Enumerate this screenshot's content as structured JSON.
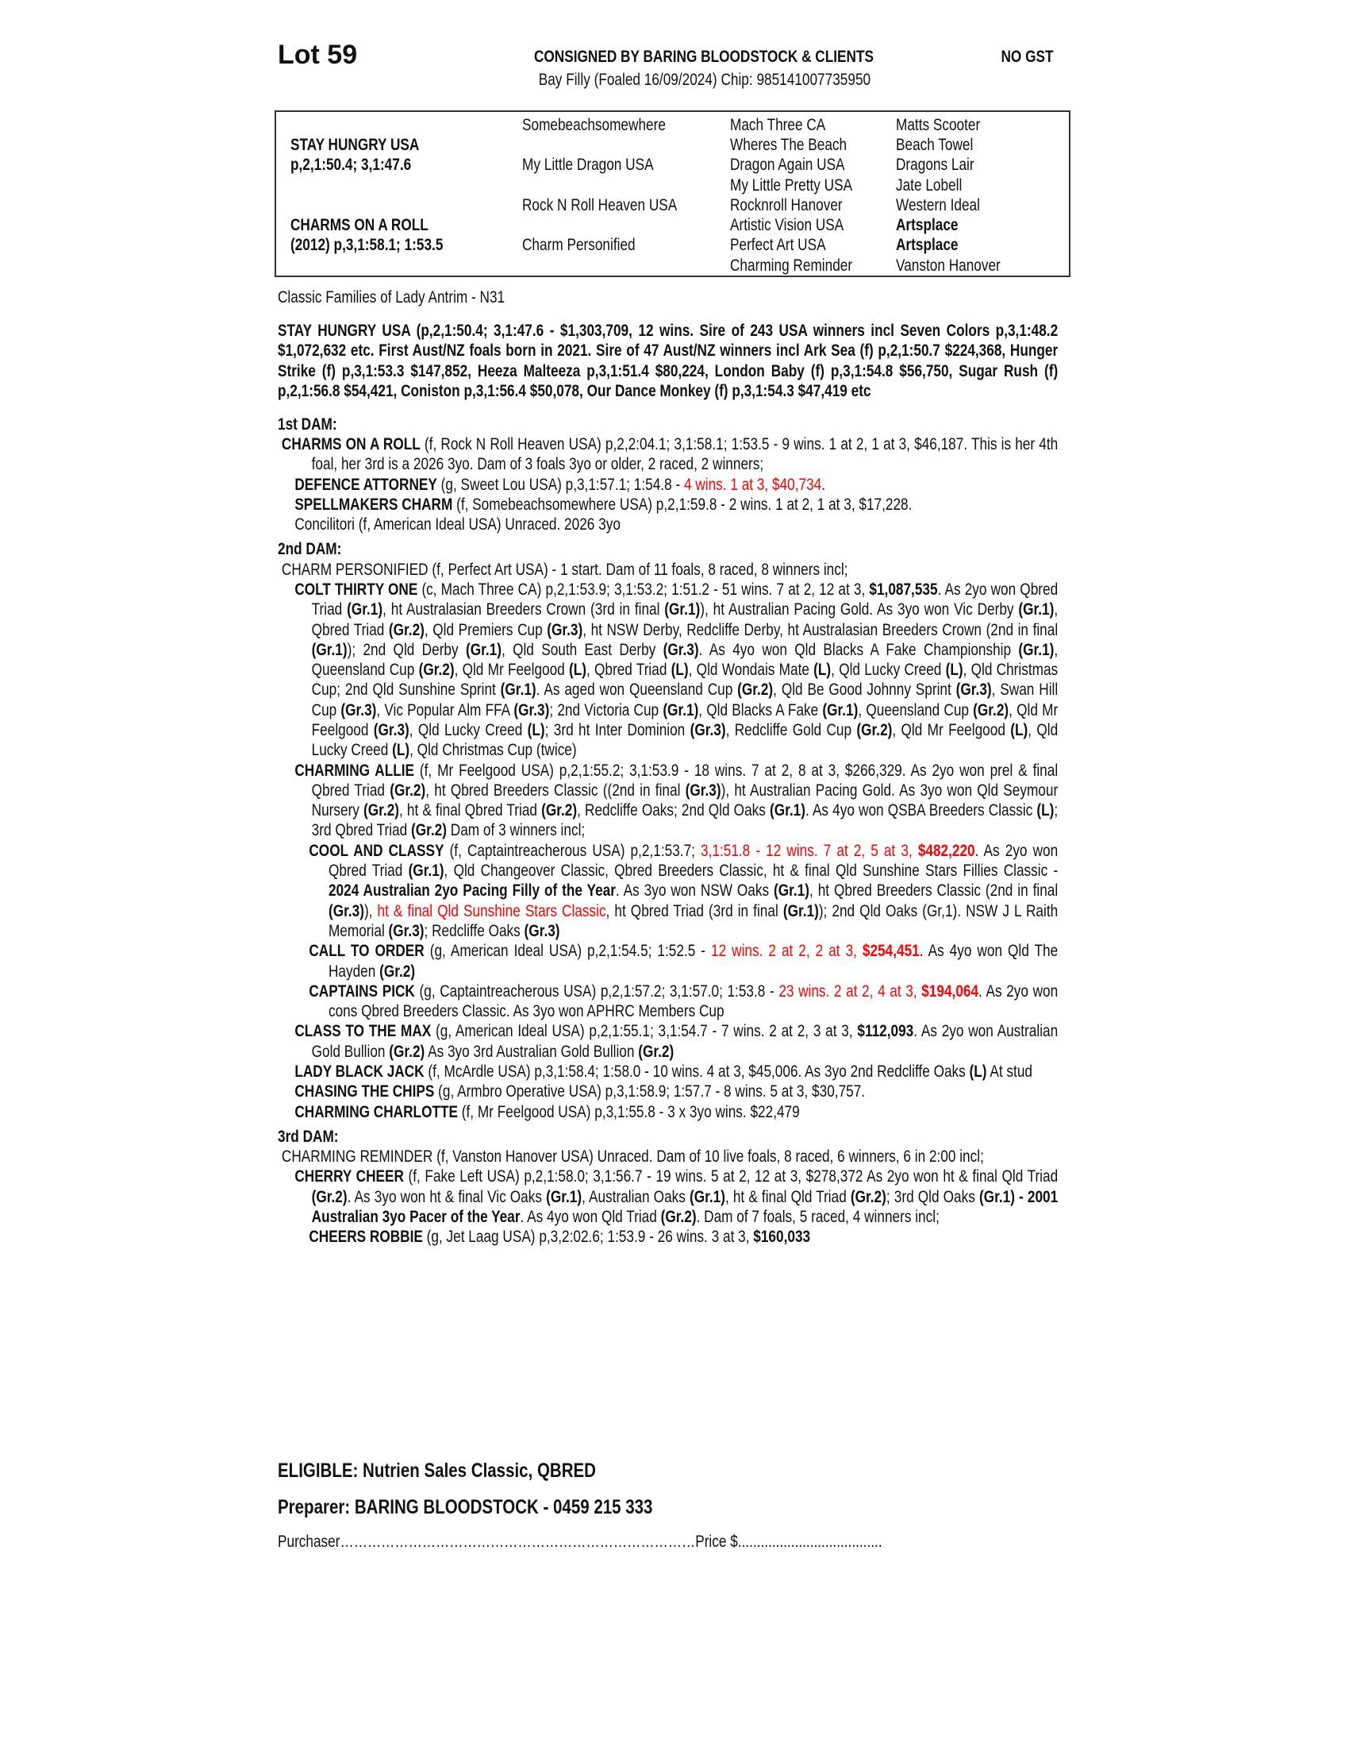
{
  "header": {
    "lot": "Lot 59",
    "consigned": "CONSIGNED BY BARING BLOODSTOCK & CLIENTS",
    "gst": "NO GST",
    "subtitle": "Bay Filly (Foaled 16/09/2024) Chip: 985141007735950"
  },
  "pedigree": {
    "sire": {
      "name": "STAY HUNGRY USA",
      "record": "p,2,1:50.4; 3,1:47.6"
    },
    "dam": {
      "name": "CHARMS ON A ROLL",
      "record": "(2012) p,3,1:58.1; 1:53.5"
    },
    "generation2": [
      "Somebeachsomewhere",
      "My Little Dragon USA",
      "Rock N Roll Heaven USA",
      "Charm Personified"
    ],
    "generation3": [
      "Mach Three CA",
      "Wheres The Beach",
      "Dragon Again USA",
      "My Little Pretty USA",
      "Rocknroll Hanover",
      "Artistic Vision USA",
      "Perfect Art USA",
      "Charming Reminder"
    ],
    "generation4": [
      "Matts Scooter",
      "Beach Towel",
      "Dragons Lair",
      "Jate Lobell",
      "Western Ideal",
      "Artsplace",
      "Artsplace",
      "Vanston Hanover"
    ],
    "generation4_bold": [
      false,
      false,
      false,
      false,
      false,
      true,
      true,
      false
    ]
  },
  "paragraphs": [
    {
      "cls": "i0",
      "segs": [
        [
          "Classic Families of Lady Antrim - N31",
          "n"
        ]
      ]
    },
    {
      "cls": "i0 gap allb",
      "segs": [
        [
          "STAY HUNGRY USA (p,2,1:50.4; 3,1:47.6 - $1,303,709, 12 wins. Sire of 243 USA winners incl Seven Colors p,3,1:48.2 $1,072,632 etc. First Aust/NZ  foals born in 2021. Sire of 47 Aust/NZ winners incl Ark Sea (f) p,2,1:50.7 $224,368, Hunger Strike (f) p,3,1:53.3 $147,852, Heeza Malteeza p,3,1:51.4 $80,224, London Baby (f) p,3,1:54.8 $56,750, Sugar Rush (f) p,2,1:56.8 $54,421, Coniston p,3,1:56.4 $50,078, Our Dance Monkey (f) p,3,1:54.3 $47,419 etc",
          "b"
        ]
      ]
    },
    {
      "cls": "i0 gap allb",
      "segs": [
        [
          "1st DAM:",
          "b"
        ]
      ]
    },
    {
      "cls": "ia",
      "segs": [
        [
          "CHARMS ON A ROLL",
          "b"
        ],
        [
          " (f, Rock N Roll Heaven USA) p,2,2:04.1; 3,1:58.1; 1:53.5 - 9 wins. 1 at 2, 1 at 3, $46,187. This is her 4th foal, her 3rd is a 2026 3yo. Dam of 3 foals 3yo or older, 2 raced, 2 winners;",
          "n"
        ]
      ]
    },
    {
      "cls": "ib",
      "segs": [
        [
          "DEFENCE ATTORNEY",
          "b"
        ],
        [
          " (g, Sweet Lou USA) p,3,1:57.1; 1:54.8 - ",
          "n"
        ],
        [
          "4 wins. 1 at 3, $40,734",
          "r"
        ],
        [
          ".",
          "n"
        ]
      ]
    },
    {
      "cls": "ib",
      "segs": [
        [
          "SPELLMAKERS CHARM",
          "b"
        ],
        [
          " (f, Somebeachsomewhere USA) p,2,1:59.8 - 2 wins. 1 at 2, 1 at 3, $17,228.",
          "n"
        ]
      ]
    },
    {
      "cls": "ib",
      "segs": [
        [
          "Concilitori (f, American Ideal USA) Unraced. 2026 3yo",
          "n"
        ]
      ]
    },
    {
      "cls": "i0 h",
      "segs": [
        [
          "2nd DAM:",
          "b"
        ]
      ]
    },
    {
      "cls": "ia",
      "segs": [
        [
          "CHARM PERSONIFIED (f, Perfect Art USA) - 1 start. Dam of 11 foals, 8 raced, 8 winners incl;",
          "n"
        ]
      ]
    },
    {
      "cls": "ib",
      "segs": [
        [
          "COLT THIRTY ONE",
          "b"
        ],
        [
          " (c, Mach Three CA) p,2,1:53.9; 3,1:53.2; 1:51.2 - 51 wins. 7 at 2, 12 at 3, ",
          "n"
        ],
        [
          "$1,087,535",
          "b"
        ],
        [
          ". As 2yo won Qbred Triad ",
          "n"
        ],
        [
          "(Gr.1)",
          "b"
        ],
        [
          ", ht Australasian Breeders Crown (3rd in final ",
          "n"
        ],
        [
          "(Gr.1)",
          "b"
        ],
        [
          "), ht Australian Pacing Gold. As 3yo won Vic Derby ",
          "n"
        ],
        [
          "(Gr.1)",
          "b"
        ],
        [
          ", Qbred Triad ",
          "n"
        ],
        [
          "(Gr.2)",
          "b"
        ],
        [
          ", Qld Premiers Cup ",
          "n"
        ],
        [
          "(Gr.3)",
          "b"
        ],
        [
          ", ht NSW Derby, Redcliffe Derby, ht Australasian Breeders Crown (2nd in final ",
          "n"
        ],
        [
          "(Gr.1)",
          "b"
        ],
        [
          "); 2nd Qld Derby ",
          "n"
        ],
        [
          "(Gr.1)",
          "b"
        ],
        [
          ", Qld South East Derby ",
          "n"
        ],
        [
          "(Gr.3)",
          "b"
        ],
        [
          ". As 4yo won Qld Blacks A Fake Championship ",
          "n"
        ],
        [
          "(Gr.1)",
          "b"
        ],
        [
          ", Queensland Cup ",
          "n"
        ],
        [
          "(Gr.2)",
          "b"
        ],
        [
          ", Qld Mr Feelgood ",
          "n"
        ],
        [
          "(L)",
          "b"
        ],
        [
          ", Qbred Triad ",
          "n"
        ],
        [
          "(L)",
          "b"
        ],
        [
          ", Qld Wondais Mate ",
          "n"
        ],
        [
          "(L)",
          "b"
        ],
        [
          ", Qld Lucky Creed ",
          "n"
        ],
        [
          "(L)",
          "b"
        ],
        [
          ", Qld Christmas Cup; 2nd Qld Sunshine Sprint ",
          "n"
        ],
        [
          "(Gr.1)",
          "b"
        ],
        [
          ". As aged won Queensland Cup ",
          "n"
        ],
        [
          "(Gr.2)",
          "b"
        ],
        [
          ", Qld Be Good Johnny Sprint ",
          "n"
        ],
        [
          "(Gr.3)",
          "b"
        ],
        [
          ", Swan Hill Cup ",
          "n"
        ],
        [
          "(Gr.3)",
          "b"
        ],
        [
          ", Vic Popular Alm FFA ",
          "n"
        ],
        [
          "(Gr.3)",
          "b"
        ],
        [
          "; 2nd Victoria Cup ",
          "n"
        ],
        [
          "(Gr.1)",
          "b"
        ],
        [
          ", Qld Blacks A Fake ",
          "n"
        ],
        [
          "(Gr.1)",
          "b"
        ],
        [
          ", Queensland Cup ",
          "n"
        ],
        [
          "(Gr.2)",
          "b"
        ],
        [
          ", Qld Mr Feelgood ",
          "n"
        ],
        [
          "(Gr.3)",
          "b"
        ],
        [
          ", Qld Lucky Creed ",
          "n"
        ],
        [
          "(L)",
          "b"
        ],
        [
          "; 3rd ht Inter Dominion ",
          "n"
        ],
        [
          "(Gr.3)",
          "b"
        ],
        [
          ", Redcliffe Gold Cup ",
          "n"
        ],
        [
          "(Gr.2)",
          "b"
        ],
        [
          ", Qld Mr Feelgood ",
          "n"
        ],
        [
          "(L)",
          "b"
        ],
        [
          ", Qld Lucky Creed ",
          "n"
        ],
        [
          "(L)",
          "b"
        ],
        [
          ", Qld Christmas Cup (twice)",
          "n"
        ]
      ]
    },
    {
      "cls": "ib",
      "segs": [
        [
          "CHARMING ALLIE",
          "b"
        ],
        [
          " (f, Mr Feelgood USA) p,2,1:55.2; 3,1:53.9 - 18 wins. 7 at 2, 8 at 3, $266,329. As 2yo won prel & final Qbred Triad ",
          "n"
        ],
        [
          "(Gr.2)",
          "b"
        ],
        [
          ", ht Qbred Breeders Classic ((2nd in final ",
          "n"
        ],
        [
          "(Gr.3)",
          "b"
        ],
        [
          "), ht Australian Pacing Gold. As 3yo won Qld Seymour Nursery ",
          "n"
        ],
        [
          "(Gr.2)",
          "b"
        ],
        [
          ", ht & final Qbred Triad ",
          "n"
        ],
        [
          "(Gr.2)",
          "b"
        ],
        [
          ", Redcliffe Oaks; 2nd Qld Oaks ",
          "n"
        ],
        [
          "(Gr.1)",
          "b"
        ],
        [
          ". As 4yo won QSBA Breeders Classic ",
          "n"
        ],
        [
          "(L)",
          "b"
        ],
        [
          "; 3rd Qbred Triad ",
          "n"
        ],
        [
          "(Gr.2)",
          "b"
        ],
        [
          " Dam of 3 winners incl;",
          "n"
        ]
      ]
    },
    {
      "cls": "ic",
      "segs": [
        [
          "COOL AND CLASSY",
          "b"
        ],
        [
          " (f, Captaintreacherous USA) p,2,1:53.7; ",
          "n"
        ],
        [
          "3,1:51.8 - 12 wins. 7 at 2, 5 at 3, ",
          "r"
        ],
        [
          "$482,220",
          "rb"
        ],
        [
          ". As 2yo won Qbred Triad ",
          "n"
        ],
        [
          "(Gr.1)",
          "b"
        ],
        [
          ", Qld Changeover Classic, Qbred Breeders Classic, ht & final Qld Sunshine Stars Fillies Classic - ",
          "n"
        ],
        [
          "2024 Australian 2yo Pacing Filly of the Year",
          "b"
        ],
        [
          ". As 3yo won NSW Oaks ",
          "n"
        ],
        [
          "(Gr.1)",
          "b"
        ],
        [
          ", ht Qbred Breeders Classic (2nd in final ",
          "n"
        ],
        [
          "(Gr.3)",
          "b"
        ],
        [
          "), ",
          "n"
        ],
        [
          "ht & final Qld Sunshine Stars Classic",
          "r"
        ],
        [
          ", ht Qbred Triad (3rd in final ",
          "n"
        ],
        [
          "(Gr.1)",
          "b"
        ],
        [
          "); 2nd Qld Oaks (Gr,1). NSW J L Raith Memorial ",
          "n"
        ],
        [
          "(Gr.3)",
          "b"
        ],
        [
          "; Redcliffe Oaks ",
          "n"
        ],
        [
          "(Gr.3)",
          "b"
        ]
      ]
    },
    {
      "cls": "ic",
      "segs": [
        [
          "CALL TO ORDER",
          "b"
        ],
        [
          " (g, American Ideal USA) p,2,1:54.5; 1:52.5 - ",
          "n"
        ],
        [
          "12 wins. 2 at 2, 2 at 3, ",
          "r"
        ],
        [
          "$254,451",
          "rb"
        ],
        [
          ". As 4yo won Qld The Hayden ",
          "n"
        ],
        [
          "(Gr.2)",
          "b"
        ]
      ]
    },
    {
      "cls": "ic",
      "segs": [
        [
          "CAPTAINS PICK",
          "b"
        ],
        [
          " (g, Captaintreacherous USA) p,2,1:57.2; 3,1:57.0; 1:53.8 - ",
          "n"
        ],
        [
          "23 wins. 2 at 2, 4 at 3, ",
          "r"
        ],
        [
          "$194,064",
          "rb"
        ],
        [
          ". As 2yo won cons Qbred Breeders Classic. As 3yo won APHRC Members Cup",
          "n"
        ]
      ]
    },
    {
      "cls": "ib",
      "segs": [
        [
          "CLASS TO THE MAX",
          "b"
        ],
        [
          " (g, American Ideal USA) p,2,1:55.1; 3,1:54.7 - 7 wins. 2 at 2, 3 at 3, ",
          "n"
        ],
        [
          "$112,093",
          "b"
        ],
        [
          ". As 2yo won Australian Gold Bullion ",
          "n"
        ],
        [
          "(Gr.2)",
          "b"
        ],
        [
          " As 3yo 3rd Australian Gold Bullion ",
          "n"
        ],
        [
          "(Gr.2)",
          "b"
        ]
      ]
    },
    {
      "cls": "ib",
      "segs": [
        [
          "LADY BLACK JACK",
          "b"
        ],
        [
          " (f, McArdle USA) p,3,1:58.4; 1:58.0 - 10 wins. 4 at 3, $45,006. As 3yo 2nd Redcliffe Oaks ",
          "n"
        ],
        [
          "(L)",
          "b"
        ],
        [
          " At stud",
          "n"
        ]
      ]
    },
    {
      "cls": "ib",
      "segs": [
        [
          "CHASING THE CHIPS",
          "b"
        ],
        [
          " (g, Armbro Operative USA) p,3,1:58.9; 1:57.7 - 8 wins. 5 at 3, $30,757.",
          "n"
        ]
      ]
    },
    {
      "cls": "ib",
      "segs": [
        [
          "CHARMING CHARLOTTE",
          "b"
        ],
        [
          " (f, Mr Feelgood USA) p,3,1:55.8 - 3 x 3yo wins. $22,479",
          "n"
        ]
      ]
    },
    {
      "cls": "i0 h",
      "segs": [
        [
          "3rd DAM:",
          "b"
        ]
      ]
    },
    {
      "cls": "ia",
      "segs": [
        [
          "CHARMING REMINDER (f, Vanston Hanover USA) Unraced. Dam of 10 live foals, 8 raced, 6 winners, 6 in 2:00 incl;",
          "n"
        ]
      ]
    },
    {
      "cls": "ib",
      "segs": [
        [
          "CHERRY CHEER",
          "b"
        ],
        [
          " (f, Fake Left USA) p,2,1:58.0; 3,1:56.7 - 19 wins. 5 at 2, 12 at 3, $278,372 As 2yo won ht & final Qld Triad ",
          "n"
        ],
        [
          "(Gr.2)",
          "b"
        ],
        [
          ". As 3yo won ht & final Vic Oaks ",
          "n"
        ],
        [
          "(Gr.1)",
          "b"
        ],
        [
          ", Australian Oaks ",
          "n"
        ],
        [
          "(Gr.1)",
          "b"
        ],
        [
          ", ht & final Qld Triad ",
          "n"
        ],
        [
          "(Gr.2)",
          "b"
        ],
        [
          "; 3rd Qld Oaks ",
          "n"
        ],
        [
          "(Gr.1) - 2001 Australian 3yo Pacer of the Year",
          "b"
        ],
        [
          ". As 4yo won Qld Triad ",
          "n"
        ],
        [
          "(Gr.2)",
          "b"
        ],
        [
          ". Dam of 7 foals, 5 raced, 4 winners incl;",
          "n"
        ]
      ]
    },
    {
      "cls": "ic",
      "segs": [
        [
          "CHEERS ROBBIE",
          "b"
        ],
        [
          " (g, Jet Laag USA) p,3,2:02.6; 1:53.9 - 26 wins. 3 at 3, ",
          "n"
        ],
        [
          "$160,033",
          "b"
        ]
      ]
    }
  ],
  "footer": {
    "eligible": "ELIGIBLE: Nutrien Sales Classic, QBRED",
    "preparer": "Preparer: BARING BLOODSTOCK - 0459 215 333",
    "purchaser_label": "Purchaser",
    "purchaser_dots": "……………………………………………………………………",
    "price_label": "Price $",
    "price_dots": "......................................"
  },
  "colors": {
    "highlight": "#ff0000",
    "text": "#111111"
  }
}
